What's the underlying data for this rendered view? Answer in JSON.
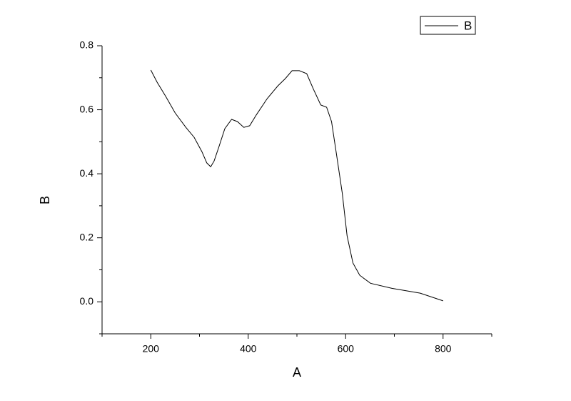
{
  "chart_data": {
    "type": "line",
    "x_label": "A",
    "y_label": "B",
    "xlim": [
      100,
      900
    ],
    "xticks": [
      200,
      400,
      600,
      800
    ],
    "xminorticks": [
      100,
      300,
      500,
      700,
      900
    ],
    "ylim": [
      -0.1,
      0.8
    ],
    "yticks": [
      {
        "value": 0,
        "label": "0.0"
      },
      {
        "value": 0.2,
        "label": "0.2"
      },
      {
        "value": 0.4,
        "label": "0.4"
      },
      {
        "value": 0.6,
        "label": "0.6"
      },
      {
        "value": 0.8,
        "label": "0.8"
      }
    ],
    "yminorticks": [
      -0.1,
      0.1,
      0.3,
      0.5,
      0.7
    ],
    "legend": "top-right",
    "x": [
      200,
      213,
      231,
      250,
      272,
      289,
      305,
      315,
      323,
      330,
      340,
      352,
      366,
      378,
      391,
      403,
      417,
      439,
      461,
      476,
      490,
      505,
      520,
      534,
      549,
      561,
      571,
      581,
      593,
      603,
      615,
      629,
      651,
      695,
      753,
      800
    ],
    "series": [
      {
        "name": "B",
        "color": "#000000",
        "values": [
          0.724,
          0.686,
          0.641,
          0.59,
          0.545,
          0.514,
          0.469,
          0.434,
          0.422,
          0.44,
          0.485,
          0.541,
          0.57,
          0.563,
          0.545,
          0.55,
          0.585,
          0.635,
          0.675,
          0.697,
          0.722,
          0.722,
          0.713,
          0.664,
          0.615,
          0.608,
          0.563,
          0.463,
          0.34,
          0.206,
          0.121,
          0.083,
          0.058,
          0.042,
          0.027,
          0.003
        ]
      }
    ]
  }
}
